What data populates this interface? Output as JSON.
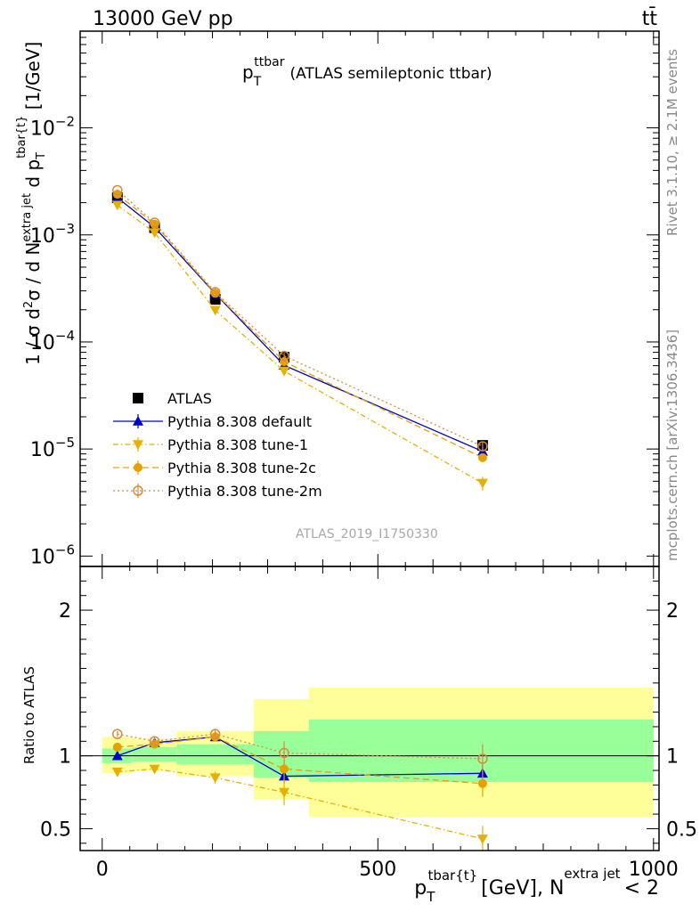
{
  "header": {
    "energy_label": "13000 GeV pp",
    "process_label": "tt̄"
  },
  "side_labels": {
    "rivet": "Rivet 3.1.10, ≥ 2.1M events",
    "mcplots": "mcplots.cern.ch [arXiv:1306.3436]"
  },
  "analysis_id": "ATLAS_2019_I1750330",
  "colors": {
    "data": "#000000",
    "default": "#0000cc",
    "tune1": "#e6b000",
    "tune2c": "#e6a000",
    "tune2m": "#d88c3a",
    "band_inner": "#99ff99",
    "band_outer": "#ffff99"
  },
  "chart_data": [
    {
      "type": "scatter",
      "title": "p_T^ttbar (ATLAS semileptonic ttbar)",
      "title_main": "p",
      "title_sub": "T",
      "title_sup": "ttbar",
      "title_rest": "(ATLAS semileptonic ttbar)",
      "ylabel": "1 / σ d²σ / d N^{extra jet} d p_T^{tbar{t}} [1/GeV]",
      "y_scale": "log",
      "xlim": [
        -40,
        1010
      ],
      "ylim": [
        8e-07,
        0.08
      ],
      "y_ticks": [
        {
          "value": 1e-06,
          "base": "10",
          "exp": "−6"
        },
        {
          "value": 1e-05,
          "base": "10",
          "exp": "−5"
        },
        {
          "value": 0.0001,
          "base": "10",
          "exp": "−4"
        },
        {
          "value": 0.001,
          "base": "10",
          "exp": "−3"
        },
        {
          "value": 0.01,
          "base": "10",
          "exp": "−2"
        }
      ],
      "legend_position": "bottom-left",
      "x": [
        27.5,
        95,
        205,
        330,
        690
      ],
      "series": [
        {
          "name": "ATLAS",
          "key": "data",
          "marker": "square",
          "values": [
            0.00222,
            0.00117,
            0.00025,
            7.2e-05,
            1.08e-05
          ],
          "errors": [
            0.0001,
            5e-05,
            1e-05,
            4e-06,
            8e-07
          ]
        },
        {
          "name": "Pythia 8.308 default",
          "key": "default",
          "marker": "triangle-up",
          "line": "solid",
          "values": [
            0.00223,
            0.00118,
            0.000283,
            6.05e-05,
            9.5e-06
          ],
          "errors": [
            5e-05,
            3e-05,
            8e-06,
            4e-06,
            8e-07
          ]
        },
        {
          "name": "Pythia 8.308 tune-1",
          "key": "tune1",
          "marker": "triangle-down",
          "line": "dashdot",
          "values": [
            0.0019,
            0.00105,
            0.000198,
            5.35e-05,
            4.8e-06
          ],
          "errors": [
            5e-05,
            3e-05,
            8e-06,
            5e-06,
            7e-07
          ]
        },
        {
          "name": "Pythia 8.308 tune-2c",
          "key": "tune2c",
          "marker": "circle",
          "line": "dashed",
          "values": [
            0.0024,
            0.00126,
            0.000285,
            6.55e-05,
            8.3e-06
          ],
          "errors": [
            5e-05,
            3e-05,
            8e-06,
            5e-06,
            8e-07
          ]
        },
        {
          "name": "Pythia 8.308 tune-2m",
          "key": "tune2m",
          "marker": "circle-open",
          "line": "dotted",
          "values": [
            0.00262,
            0.0013,
            0.000292,
            7.4e-05,
            1.06e-05
          ],
          "errors": [
            5e-05,
            3e-05,
            8e-06,
            5e-06,
            9e-07
          ]
        }
      ]
    },
    {
      "type": "scatter",
      "ylabel": "Ratio to ATLAS",
      "xlabel": "p_T^{tbar{t}} [GeV], N^{extra jet} < 2",
      "xlabel_main": "p",
      "xlabel_sub": "T",
      "xlabel_sup": "tbar{t}",
      "xlabel_unit": "[GeV], N",
      "xlabel_sup2": "extra jet",
      "xlabel_tail": "< 2",
      "xlim": [
        -40,
        1010
      ],
      "ylim": [
        0.35,
        2.3
      ],
      "x_ticks": [
        {
          "value": 0,
          "label": "0"
        },
        {
          "value": 500,
          "label": "500"
        },
        {
          "value": 1000,
          "label": "1000"
        }
      ],
      "y_ticks": [
        {
          "value": 0.5,
          "label": "0.5"
        },
        {
          "value": 1,
          "label": "1"
        },
        {
          "value": 2,
          "label": "2"
        }
      ],
      "bins": [
        {
          "lo": 0,
          "hi": 55,
          "inner": [
            0.95,
            1.05
          ],
          "outer": [
            0.88,
            1.13
          ]
        },
        {
          "lo": 55,
          "hi": 135,
          "inner": [
            0.96,
            1.06
          ],
          "outer": [
            0.9,
            1.12
          ]
        },
        {
          "lo": 135,
          "hi": 275,
          "inner": [
            0.94,
            1.08
          ],
          "outer": [
            0.86,
            1.17
          ]
        },
        {
          "lo": 275,
          "hi": 375,
          "inner": [
            0.85,
            1.17
          ],
          "outer": [
            0.7,
            1.39
          ]
        },
        {
          "lo": 375,
          "hi": 1000,
          "inner": [
            0.82,
            1.25
          ],
          "outer": [
            0.58,
            1.47
          ]
        }
      ],
      "x": [
        27.5,
        95,
        205,
        330,
        690
      ],
      "series": [
        {
          "name": "Pythia 8.308 default",
          "key": "default",
          "marker": "triangle-up",
          "line": "solid",
          "values": [
            1.0,
            1.09,
            1.13,
            0.86,
            0.88
          ],
          "errors": [
            0.02,
            0.02,
            0.03,
            0.05,
            0.06
          ]
        },
        {
          "name": "Pythia 8.308 tune-1",
          "key": "tune1",
          "marker": "triangle-down",
          "line": "dashdot",
          "values": [
            0.89,
            0.91,
            0.85,
            0.75,
            0.43
          ],
          "errors": [
            0.02,
            0.02,
            0.04,
            0.09,
            0.09
          ]
        },
        {
          "name": "Pythia 8.308 tune-2c",
          "key": "tune2c",
          "marker": "circle",
          "line": "dashed",
          "values": [
            1.06,
            1.08,
            1.13,
            0.91,
            0.81
          ],
          "errors": [
            0.02,
            0.02,
            0.03,
            0.07,
            0.09
          ]
        },
        {
          "name": "Pythia 8.308 tune-2m",
          "key": "tune2m",
          "marker": "circle-open",
          "line": "dotted",
          "values": [
            1.15,
            1.1,
            1.15,
            1.02,
            0.98
          ],
          "errors": [
            0.02,
            0.02,
            0.03,
            0.08,
            0.1
          ]
        }
      ]
    }
  ]
}
